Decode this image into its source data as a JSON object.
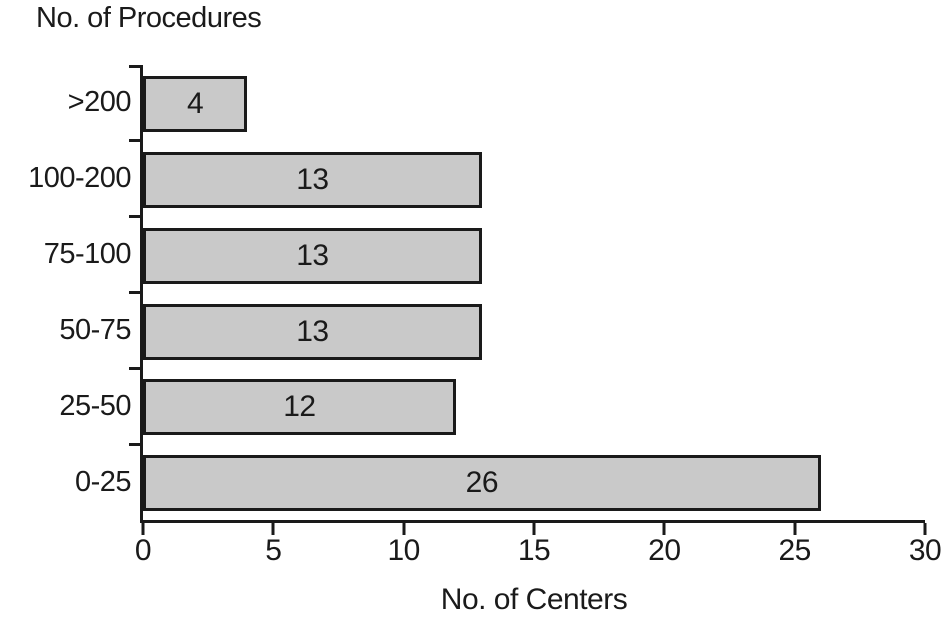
{
  "chart_data": {
    "type": "bar",
    "orientation": "horizontal",
    "title": "No. of Procedures",
    "xlabel": "No. of Centers",
    "ylabel": "No. of Procedures",
    "categories": [
      ">200",
      "100-200",
      "75-100",
      "50-75",
      "25-50",
      "0-25"
    ],
    "values": [
      4,
      13,
      13,
      13,
      12,
      26
    ],
    "value_labels": [
      "4",
      "13",
      "13",
      "13",
      "12",
      "26"
    ],
    "xlim": [
      0,
      30
    ],
    "xticks": [
      0,
      5,
      10,
      15,
      20,
      25,
      30
    ],
    "grid": "off",
    "legend": "none",
    "colors": {
      "bar_fill": "#c9c9c9",
      "bar_border": "#1a1a1a",
      "axis": "#1a1a1a",
      "text": "#1a1a1a",
      "background": "#ffffff"
    }
  }
}
